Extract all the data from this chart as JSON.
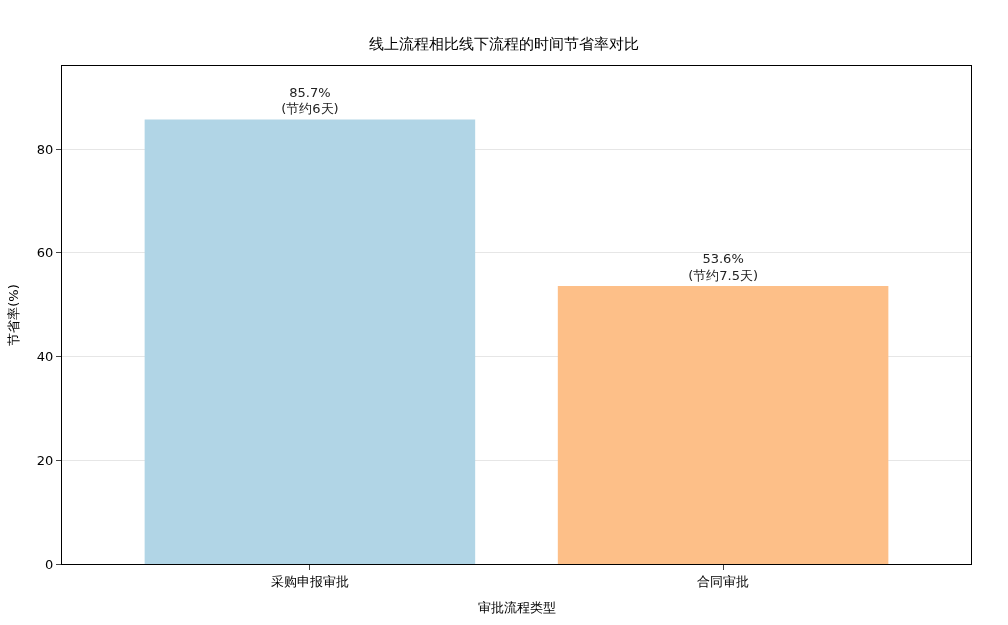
{
  "chart_data": {
    "type": "bar",
    "title": "线上流程相比线下流程的时间节省率对比",
    "xlabel": "审批流程类型",
    "ylabel": "节省率(%)",
    "categories": [
      "采购申报审批",
      "合同审批"
    ],
    "values": [
      85.7,
      53.6
    ],
    "colors": [
      "#b1d5e6",
      "#fdbf88"
    ],
    "value_labels": [
      "85.7%\n(节约6天)",
      "53.6%\n(节约7.5天)"
    ],
    "ylim": [
      0,
      96
    ],
    "yticks": [
      0,
      20,
      40,
      60,
      80
    ],
    "grid": "y"
  }
}
